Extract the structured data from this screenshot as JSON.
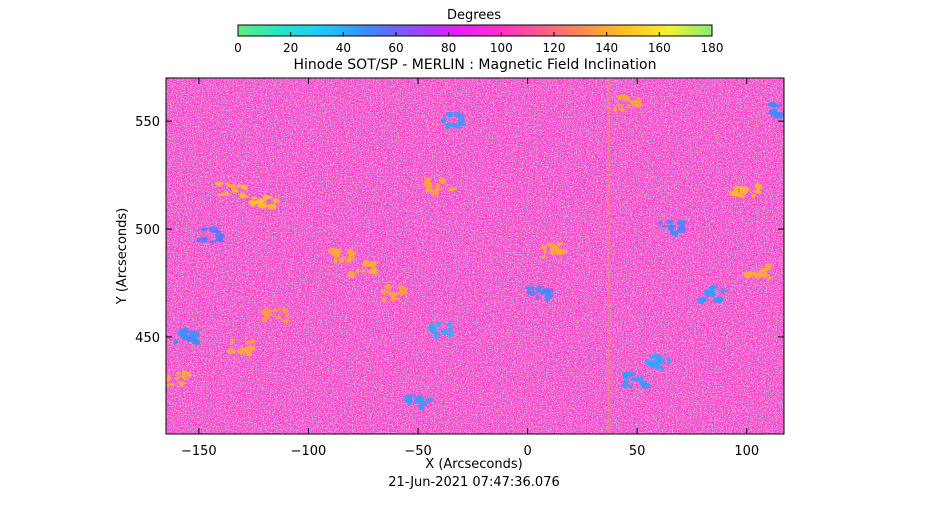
{
  "chart_data": {
    "type": "heatmap",
    "title": "Hinode SOT/SP - MERLIN : Magnetic Field Inclination",
    "xlabel": "X (Arcseconds)",
    "ylabel": "Y (Arcseconds)",
    "timestamp": "21-Jun-2021 07:47:36.076",
    "xlim": [
      -165,
      117
    ],
    "ylim": [
      405,
      570
    ],
    "x_ticks": [
      -150,
      -100,
      -50,
      0,
      50,
      100
    ],
    "y_ticks": [
      450,
      500,
      550
    ],
    "colorbar": {
      "label": "Degrees",
      "min": 0,
      "max": 180,
      "ticks": [
        0,
        20,
        40,
        60,
        80,
        100,
        120,
        140,
        160,
        180
      ],
      "stops": [
        "#5ef07a",
        "#20e6c8",
        "#1ec8ff",
        "#3a8cff",
        "#8a50ff",
        "#e020ff",
        "#ff2cd0",
        "#ff5a90",
        "#ff8c50",
        "#ffc020",
        "#f5f030",
        "#80f070"
      ]
    },
    "dominant_value": 100,
    "features": [
      {
        "x": -135,
        "y": 518,
        "value": 145
      },
      {
        "x": -120,
        "y": 512,
        "value": 148
      },
      {
        "x": -85,
        "y": 487,
        "value": 140
      },
      {
        "x": -75,
        "y": 482,
        "value": 142
      },
      {
        "x": -60,
        "y": 470,
        "value": 138
      },
      {
        "x": -130,
        "y": 445,
        "value": 140
      },
      {
        "x": -115,
        "y": 460,
        "value": 135
      },
      {
        "x": 10,
        "y": 490,
        "value": 140
      },
      {
        "x": -40,
        "y": 520,
        "value": 138
      },
      {
        "x": 100,
        "y": 518,
        "value": 145
      },
      {
        "x": 105,
        "y": 480,
        "value": 140
      },
      {
        "x": 45,
        "y": 558,
        "value": 138
      },
      {
        "x": -160,
        "y": 430,
        "value": 140
      },
      {
        "x": -35,
        "y": 550,
        "value": 45
      },
      {
        "x": -40,
        "y": 453,
        "value": 40
      },
      {
        "x": -50,
        "y": 420,
        "value": 45
      },
      {
        "x": 60,
        "y": 438,
        "value": 42
      },
      {
        "x": 65,
        "y": 500,
        "value": 50
      },
      {
        "x": 85,
        "y": 470,
        "value": 45
      },
      {
        "x": 115,
        "y": 555,
        "value": 50
      },
      {
        "x": -155,
        "y": 450,
        "value": 48
      },
      {
        "x": -145,
        "y": 497,
        "value": 55
      },
      {
        "x": 5,
        "y": 470,
        "value": 50
      },
      {
        "x": 50,
        "y": 430,
        "value": 45
      }
    ]
  }
}
